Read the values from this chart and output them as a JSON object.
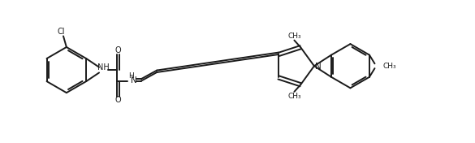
{
  "background_color": "#ffffff",
  "line_color": "#1a1a1a",
  "line_width": 1.4,
  "fig_width": 5.85,
  "fig_height": 1.76,
  "dpi": 100,
  "xlim": [
    0,
    58.5
  ],
  "ylim": [
    0,
    17.6
  ],
  "cl_label": "Cl",
  "nh_label": "NH",
  "o1_label": "O",
  "o2_label": "O",
  "h_label": "H",
  "n_label": "N",
  "n_pyrrole": "N",
  "me1_label": "CH₃",
  "me2_label": "CH₃",
  "me3_label": "CH₃",
  "font_size": 6.5
}
